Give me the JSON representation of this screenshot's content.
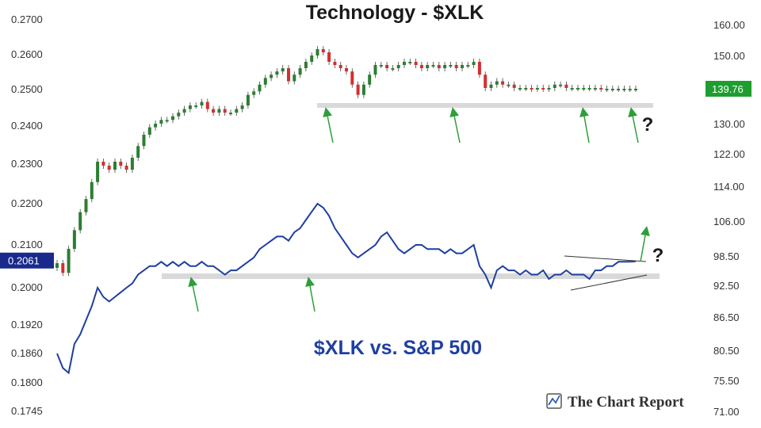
{
  "chart_data": {
    "type": "line",
    "title": "Technology - $XLK",
    "ratio_title": "$XLK vs. S&P 500",
    "brand": "The Chart Report",
    "price_axis": {
      "scale": "log",
      "ticks": [
        "160.00",
        "150.00",
        "139.76",
        "130.00",
        "122.00",
        "114.00",
        "106.00",
        "98.50",
        "92.50",
        "86.50",
        "80.50",
        "75.50",
        "71.00"
      ],
      "ylim": [
        71,
        160
      ],
      "last_value": "139.76"
    },
    "ratio_axis": {
      "scale": "log",
      "ticks": [
        "0.2700",
        "0.2600",
        "0.2500",
        "0.2400",
        "0.2300",
        "0.2200",
        "0.2100",
        "0.2061",
        "0.2000",
        "0.1920",
        "0.1860",
        "0.1800",
        "0.1745"
      ],
      "ylim": [
        0.1745,
        0.27
      ],
      "last_value": "0.2061"
    },
    "series": [
      {
        "type": "candlestick",
        "x": [
          0,
          1,
          2,
          3,
          4,
          5,
          6,
          7,
          8,
          9,
          10,
          11,
          12,
          13,
          14,
          15,
          16,
          17,
          18,
          19,
          20,
          21,
          22,
          23,
          24,
          25,
          26,
          27,
          28,
          29,
          30,
          31,
          32,
          33,
          34,
          35,
          36,
          37,
          38,
          39,
          40,
          41,
          42,
          43,
          44,
          45,
          46,
          47,
          48,
          49,
          50,
          51,
          52,
          53,
          54,
          55,
          56,
          57,
          58,
          59,
          60,
          61,
          62,
          63,
          64,
          65,
          66,
          67,
          68,
          69,
          70,
          71,
          72,
          73,
          74,
          75,
          76,
          77,
          78,
          79,
          80,
          81,
          82,
          83,
          84,
          85,
          86,
          87,
          88,
          89,
          90,
          91,
          92,
          93,
          94,
          95,
          96,
          97,
          98,
          99,
          100
        ],
        "values": [
          97,
          95,
          100,
          104,
          108,
          111,
          115,
          120,
          119,
          118,
          120,
          119,
          118,
          121,
          124,
          127,
          129,
          130,
          131,
          131,
          132,
          133,
          134,
          135,
          135,
          136,
          134,
          133,
          134,
          133,
          133,
          134,
          135,
          138,
          139,
          141,
          143,
          144,
          145,
          146,
          142,
          144,
          146,
          148,
          150,
          152,
          151,
          148,
          147,
          146,
          145,
          141,
          138,
          141,
          144,
          147,
          147,
          146,
          146,
          147,
          148,
          148,
          147,
          146,
          147,
          147,
          146,
          147,
          147,
          146,
          147,
          147,
          148,
          144,
          140,
          141,
          142,
          141,
          141,
          140,
          140,
          140,
          139.76,
          140,
          139.76,
          140,
          141,
          141,
          140,
          140,
          140,
          140,
          140,
          140,
          139.76,
          139.76,
          139.76,
          139.76,
          139.76,
          139.76,
          139.76
        ]
      },
      {
        "name": "$XLK vs. S&P 500",
        "type": "line",
        "x": [
          0,
          1,
          2,
          3,
          4,
          5,
          6,
          7,
          8,
          9,
          10,
          11,
          12,
          13,
          14,
          15,
          16,
          17,
          18,
          19,
          20,
          21,
          22,
          23,
          24,
          25,
          26,
          27,
          28,
          29,
          30,
          31,
          32,
          33,
          34,
          35,
          36,
          37,
          38,
          39,
          40,
          41,
          42,
          43,
          44,
          45,
          46,
          47,
          48,
          49,
          50,
          51,
          52,
          53,
          54,
          55,
          56,
          57,
          58,
          59,
          60,
          61,
          62,
          63,
          64,
          65,
          66,
          67,
          68,
          69,
          70,
          71,
          72,
          73,
          74,
          75,
          76,
          77,
          78,
          79,
          80,
          81,
          82,
          83,
          84,
          85,
          86,
          87,
          88,
          89,
          90,
          91,
          92,
          93,
          94,
          95,
          96,
          97,
          98,
          99,
          100
        ],
        "values": [
          0.186,
          0.183,
          0.182,
          0.188,
          0.19,
          0.193,
          0.196,
          0.2,
          0.198,
          0.197,
          0.198,
          0.199,
          0.2,
          0.201,
          0.203,
          0.204,
          0.205,
          0.205,
          0.206,
          0.205,
          0.206,
          0.205,
          0.206,
          0.205,
          0.205,
          0.206,
          0.205,
          0.205,
          0.204,
          0.203,
          0.204,
          0.204,
          0.205,
          0.206,
          0.207,
          0.209,
          0.21,
          0.211,
          0.212,
          0.212,
          0.211,
          0.213,
          0.214,
          0.216,
          0.218,
          0.22,
          0.219,
          0.217,
          0.214,
          0.212,
          0.21,
          0.208,
          0.207,
          0.208,
          0.209,
          0.21,
          0.212,
          0.213,
          0.211,
          0.209,
          0.208,
          0.209,
          0.21,
          0.21,
          0.209,
          0.209,
          0.209,
          0.208,
          0.209,
          0.208,
          0.208,
          0.209,
          0.21,
          0.205,
          0.203,
          0.2,
          0.204,
          0.205,
          0.204,
          0.204,
          0.203,
          0.204,
          0.203,
          0.203,
          0.204,
          0.202,
          0.203,
          0.203,
          0.204,
          0.203,
          0.203,
          0.203,
          0.202,
          0.204,
          0.204,
          0.205,
          0.205,
          0.206,
          0.206,
          0.206,
          0.2061
        ]
      }
    ],
    "annotations": {
      "support_line_price": 139.76,
      "support_line_ratio": 0.2035,
      "question_marks": [
        "?",
        "?"
      ]
    },
    "colors": {
      "ratio_line": "#1f3fa0",
      "candle_up": "#2e7d32",
      "candle_down": "#d32f2f",
      "support": "#d9d9d9",
      "arrow": "#2e9e3a",
      "price_badge": "#1e9e2e",
      "ratio_badge": "#1a2a8c"
    },
    "grid": false,
    "legend": "none"
  }
}
